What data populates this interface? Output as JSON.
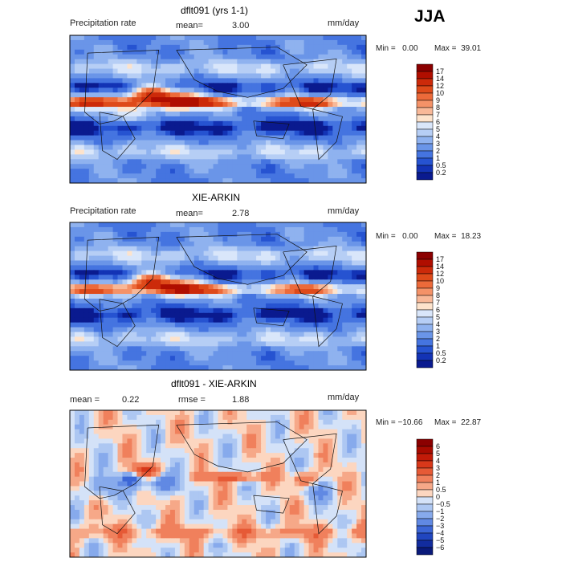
{
  "season": "JJA",
  "panels": [
    {
      "id": "model",
      "title": "dflt091 (yrs 1-1)",
      "variable": "Precipitation rate",
      "stat1_label": "mean=",
      "stat1_value": "3.00",
      "stat2_label": "",
      "stat2_value": "",
      "units": "mm/day",
      "min_text": "Min =   0.00",
      "max_text": "Max =  39.01",
      "colorbar_labels": [
        "17",
        "14",
        "12",
        "10",
        "9",
        "8",
        "7",
        "6",
        "5",
        "4",
        "3",
        "2",
        "1",
        "0.5",
        "0.2"
      ],
      "colors": [
        "#8b0000",
        "#b00e00",
        "#cc2a0a",
        "#de4a1a",
        "#ec6a3a",
        "#f49268",
        "#f8b898",
        "#fde3cc",
        "#d9e6fa",
        "#b6cef5",
        "#8fb2ef",
        "#6a95e8",
        "#4574e0",
        "#2653d1",
        "#1333b5",
        "#0a1a8f"
      ],
      "pattern": "model"
    },
    {
      "id": "obs",
      "title": "XIE-ARKIN",
      "variable": "Precipitation rate",
      "stat1_label": "mean=",
      "stat1_value": "2.78",
      "stat2_label": "",
      "stat2_value": "",
      "units": "mm/day",
      "min_text": "Min =   0.00",
      "max_text": "Max =  18.23",
      "colorbar_labels": [
        "17",
        "14",
        "12",
        "10",
        "9",
        "8",
        "7",
        "6",
        "5",
        "4",
        "3",
        "2",
        "1",
        "0.5",
        "0.2"
      ],
      "colors": [
        "#8b0000",
        "#b00e00",
        "#cc2a0a",
        "#de4a1a",
        "#ec6a3a",
        "#f49268",
        "#f8b898",
        "#fde3cc",
        "#d9e6fa",
        "#b6cef5",
        "#8fb2ef",
        "#6a95e8",
        "#4574e0",
        "#2653d1",
        "#1333b5",
        "#0a1a8f"
      ],
      "pattern": "obs"
    },
    {
      "id": "diff",
      "title": "dflt091 - XIE-ARKIN",
      "variable": "",
      "stat1_label": "mean =",
      "stat1_value": "0.22",
      "stat2_label": "rmse =",
      "stat2_value": "1.88",
      "units": "mm/day",
      "min_text": "Min = −10.66",
      "max_text": "Max =  22.87",
      "colorbar_labels": [
        "6",
        "5",
        "4",
        "3",
        "2",
        "1",
        "0.5",
        "0",
        "−0.5",
        "−1",
        "−2",
        "−3",
        "−4",
        "−5",
        "−6"
      ],
      "colors": [
        "#8b0000",
        "#a80a00",
        "#c21a08",
        "#d8381a",
        "#e65a36",
        "#f0805c",
        "#f6a888",
        "#fcd6c0",
        "#d4e2f8",
        "#adc7f2",
        "#87aaec",
        "#6189e3",
        "#3c66d6",
        "#2146bf",
        "#122c9e",
        "#0a1a7a"
      ],
      "pattern": "diff"
    }
  ]
}
